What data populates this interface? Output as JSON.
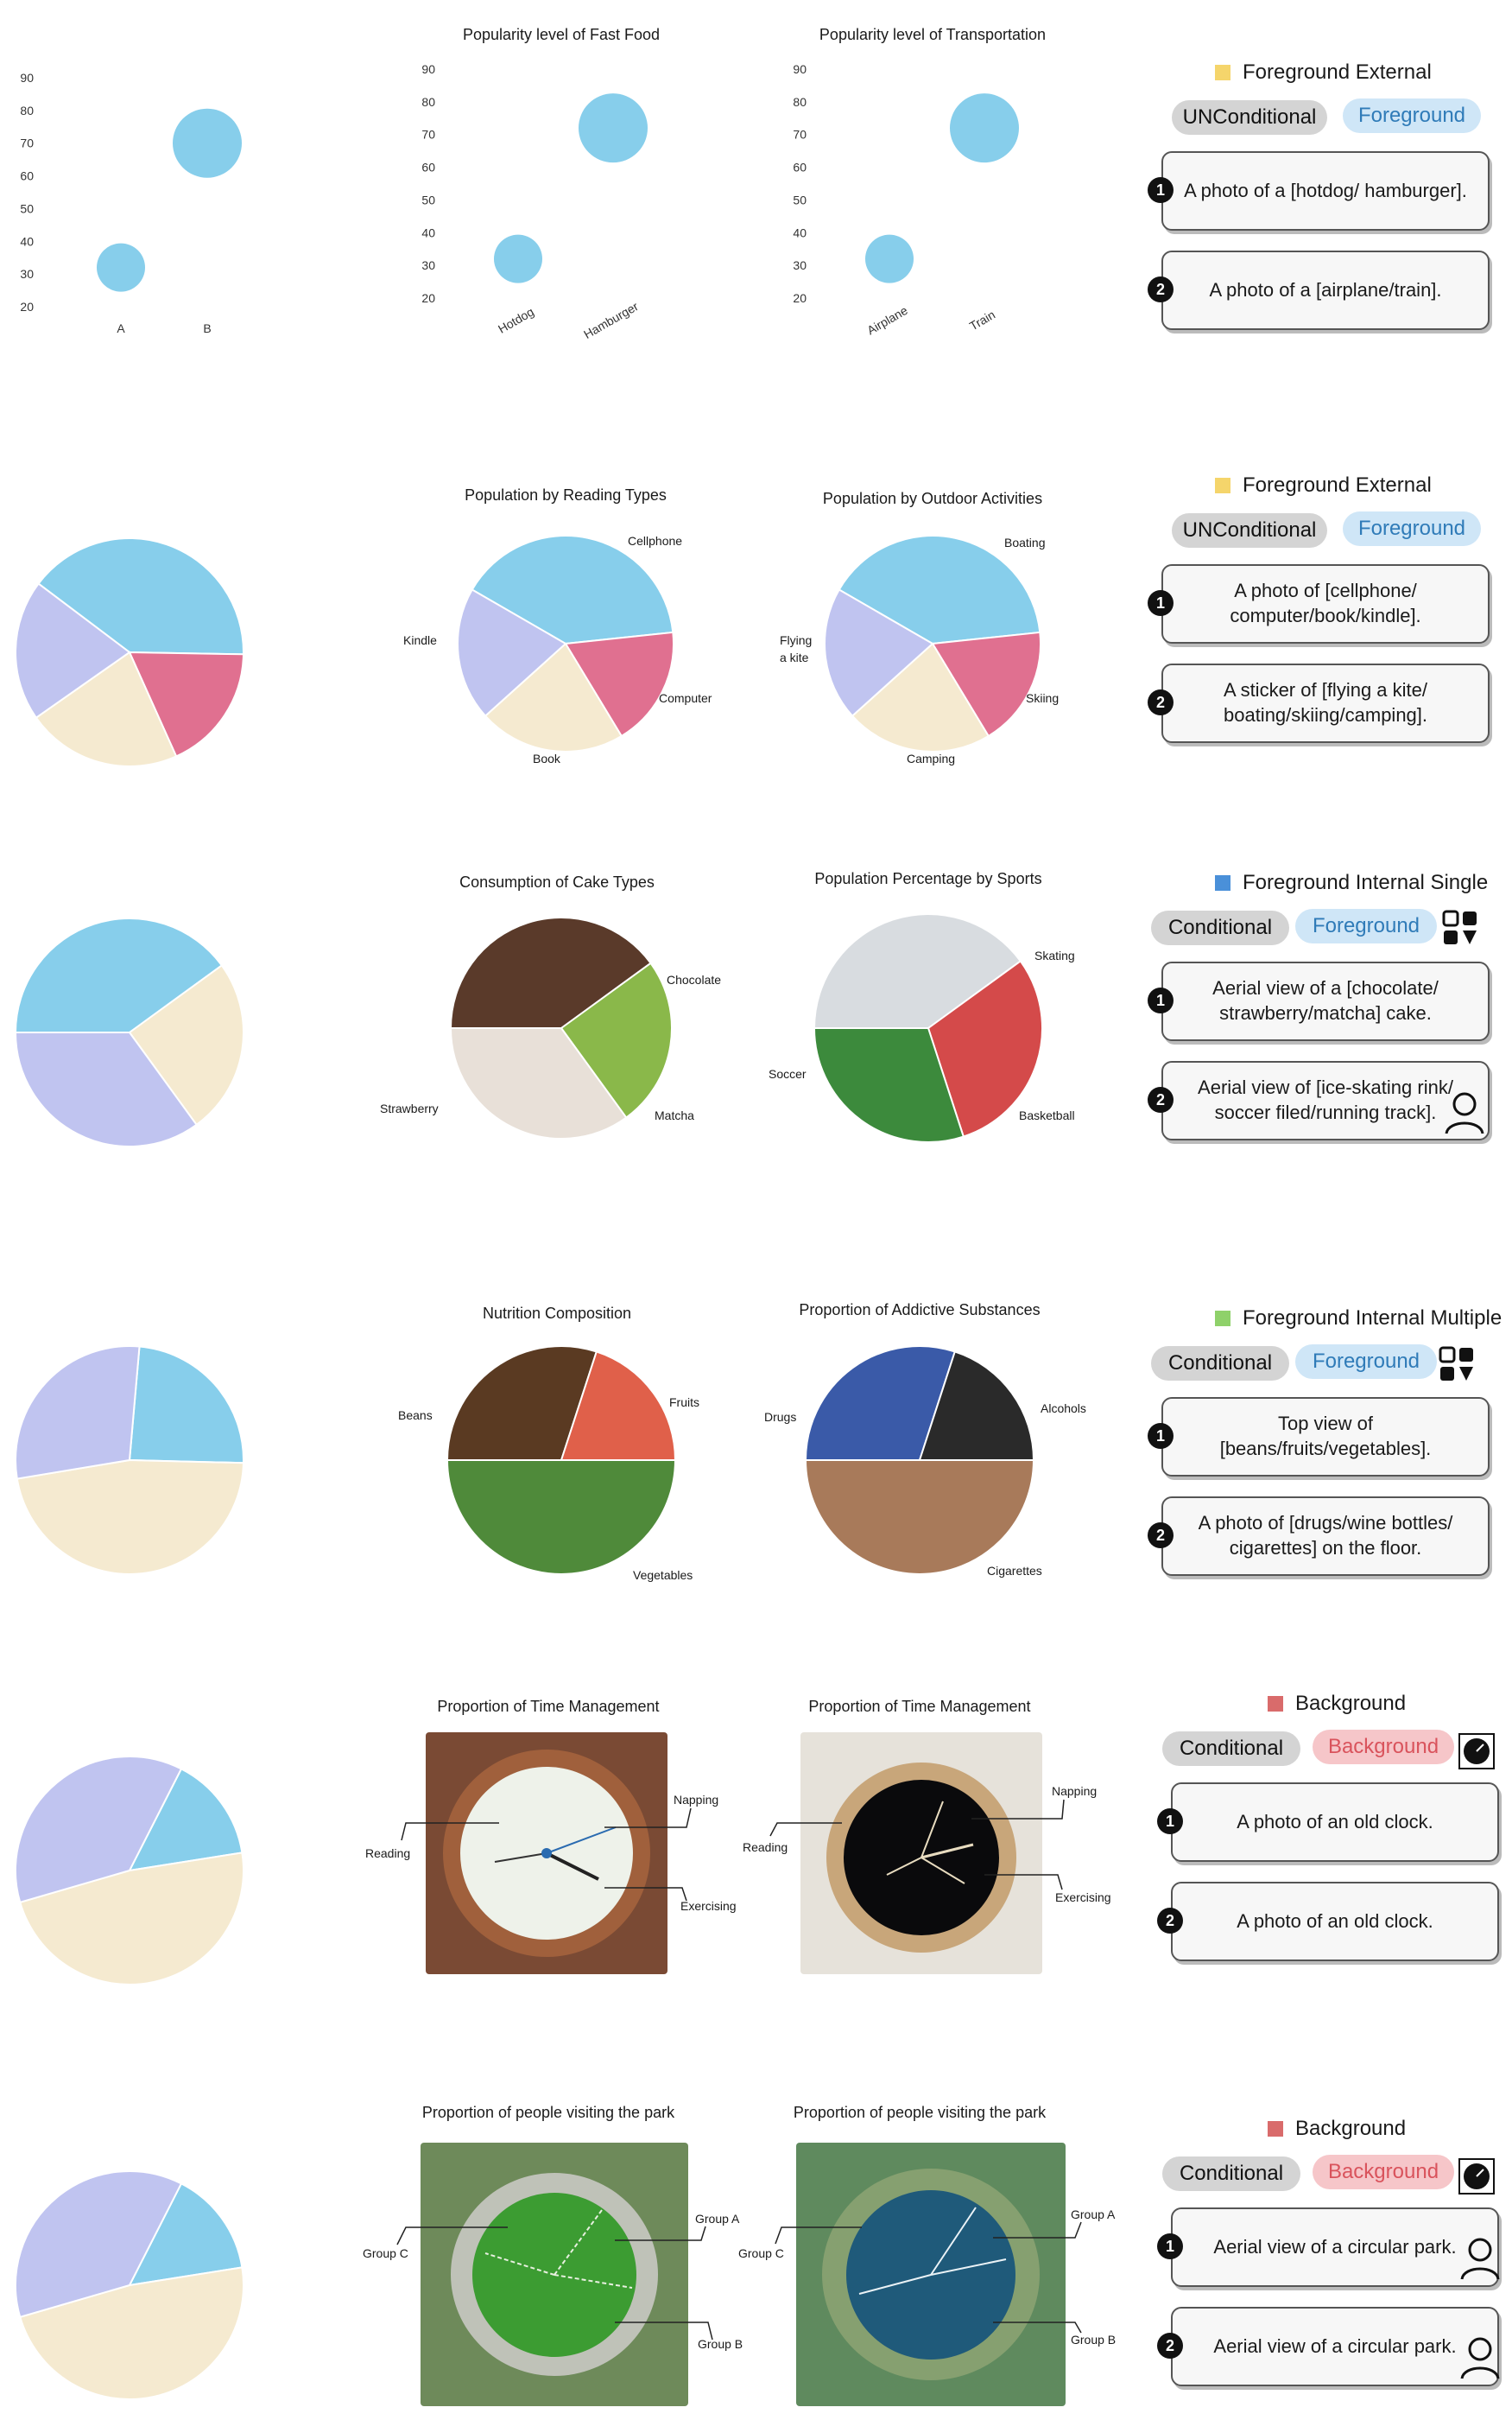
{
  "rows": [
    {
      "chart_data": {
        "type": "scatter",
        "categories": [
          "A",
          "B"
        ],
        "values": [
          32,
          70
        ],
        "yticks": [
          20,
          30,
          40,
          50,
          60,
          70,
          80,
          90
        ]
      },
      "panels": [
        {
          "title": "Popularity level of Fast Food",
          "categories": [
            "Hotdog",
            "Hamburger"
          ],
          "yticks": [
            "90",
            "80",
            "70",
            "60",
            "50",
            "40",
            "30",
            "20"
          ]
        },
        {
          "title": "Popularity level of Transportation",
          "categories": [
            "Airplane",
            "Train"
          ],
          "yticks": [
            "90",
            "80",
            "70",
            "60",
            "50",
            "40",
            "30",
            "20"
          ]
        }
      ],
      "prompt": {
        "category": "Foreground External",
        "mode_left": "UNConditional",
        "mode_right": "Foreground",
        "color": "#f5d56b",
        "items": [
          "A photo of a [hotdog/ hamburger].",
          "A photo of a [airplane/train]."
        ]
      }
    },
    {
      "chart_data": {
        "type": "pie",
        "values": [
          40,
          18,
          22,
          20
        ],
        "colors": [
          "#87ceeb",
          "#e07090",
          "#f5ead0",
          "#c0c4f0"
        ]
      },
      "panels": [
        {
          "title": "Population by Reading Types",
          "labels": [
            "Cellphone",
            "Computer",
            "Book",
            "Kindle"
          ]
        },
        {
          "title": "Population by Outdoor Activities",
          "labels": [
            "Boating",
            "Skiing",
            "Camping",
            "Flying a kite"
          ]
        }
      ],
      "prompt": {
        "category": "Foreground External",
        "mode_left": "UNConditional",
        "mode_right": "Foreground",
        "color": "#f5d56b",
        "items": [
          "A photo of [cellphone/ computer/book/kindle].",
          "A sticker of [flying a kite/ boating/skiing/camping]."
        ]
      }
    },
    {
      "chart_data": {
        "type": "pie",
        "values": [
          40,
          25,
          35
        ],
        "colors": [
          "#87ceeb",
          "#f5ead0",
          "#c0c4f0"
        ]
      },
      "panels": [
        {
          "title": "Consumption of Cake Types",
          "labels": [
            "Chocolate",
            "Strawberry",
            "Matcha"
          ]
        },
        {
          "title": "Population Percentage by Sports",
          "labels": [
            "Skating",
            "Soccer",
            "Basketball"
          ]
        }
      ],
      "prompt": {
        "category": "Foreground Internal Single",
        "mode_left": "Conditional",
        "mode_right": "Foreground",
        "color": "#4a90d9",
        "items": [
          "Aerial view of a [chocolate/ strawberry/matcha] cake.",
          "Aerial view of [ice-skating rink/ soccer filed/running track]."
        ]
      }
    },
    {
      "chart_data": {
        "type": "pie",
        "values": [
          24,
          47,
          29
        ],
        "colors": [
          "#87ceeb",
          "#f5ead0",
          "#c0c4f0"
        ]
      },
      "panels": [
        {
          "title": "Nutrition Composition",
          "labels": [
            "Beans",
            "Fruits",
            "Vegetables"
          ]
        },
        {
          "title": "Proportion of Addictive Substances",
          "labels": [
            "Drugs",
            "Alcohols",
            "Cigarettes"
          ]
        }
      ],
      "prompt": {
        "category": "Foreground Internal Multiple",
        "mode_left": "Conditional",
        "mode_right": "Foreground",
        "color": "#8fd16a",
        "items": [
          "Top view of [beans/fruits/vegetables].",
          "A photo of [drugs/wine bottles/ cigarettes] on the floor."
        ]
      }
    },
    {
      "chart_data": {
        "type": "pie",
        "values": [
          15,
          48,
          37
        ],
        "colors": [
          "#87ceeb",
          "#f5ead0",
          "#c0c4f0"
        ]
      },
      "panels": [
        {
          "title": "Proportion of Time Management",
          "labels": [
            "Napping",
            "Reading",
            "Exercising"
          ]
        },
        {
          "title": "Proportion of Time Management",
          "labels": [
            "Napping",
            "Reading",
            "Exercising"
          ]
        }
      ],
      "prompt": {
        "category": "Background",
        "mode_left": "Conditional",
        "mode_right": "Background",
        "color": "#d96b6b",
        "items": [
          "A photo of an old clock.",
          "A photo of an old clock."
        ]
      }
    },
    {
      "chart_data": {
        "type": "pie",
        "values": [
          15,
          48,
          37
        ],
        "colors": [
          "#87ceeb",
          "#f5ead0",
          "#c0c4f0"
        ]
      },
      "panels": [
        {
          "title": "Proportion of people visiting the park",
          "labels": [
            "Group A",
            "Group C",
            "Group B"
          ]
        },
        {
          "title": "Proportion of people visiting the park",
          "labels": [
            "Group A",
            "Group C",
            "Group B"
          ]
        }
      ],
      "prompt": {
        "category": "Background",
        "mode_left": "Conditional",
        "mode_right": "Background",
        "color": "#d96b6b",
        "items": [
          "Aerial view of a circular park.",
          "Aerial view of a circular park."
        ]
      }
    }
  ],
  "numbers": [
    "1",
    "2"
  ]
}
